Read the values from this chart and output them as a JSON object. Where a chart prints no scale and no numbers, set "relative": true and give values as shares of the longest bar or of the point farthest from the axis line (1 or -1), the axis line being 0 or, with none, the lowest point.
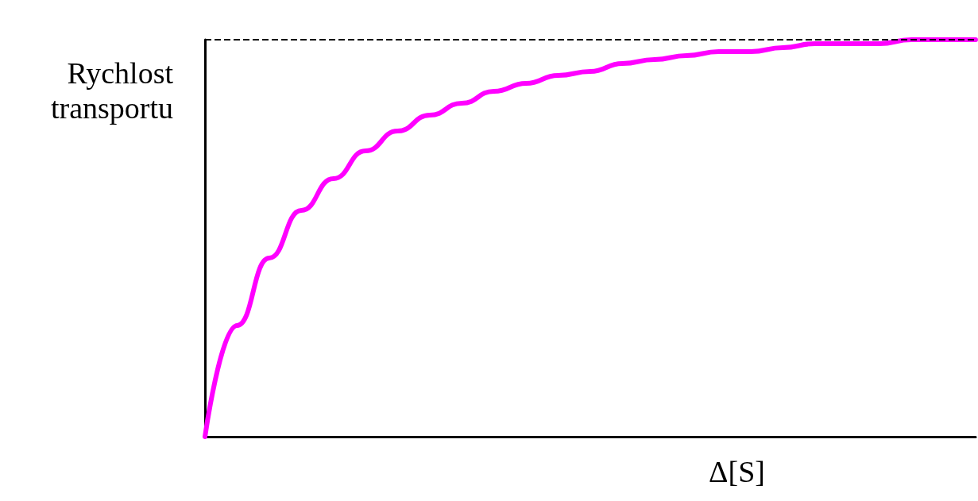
{
  "chart_data": {
    "type": "line",
    "relative": true,
    "xlabel": "Δ[S]",
    "ylabel": "Rychlost\ntransportu",
    "categories": [
      null,
      null,
      null,
      null,
      null,
      null,
      null,
      null,
      null,
      null,
      null,
      null,
      null,
      null,
      null,
      null,
      null,
      null,
      null,
      null,
      null,
      null,
      null,
      null,
      null
    ],
    "series": [
      {
        "color": "#ff00ff",
        "values": [
          0,
          0.28,
          0.45,
          0.57,
          0.65,
          0.72,
          0.77,
          0.81,
          0.84,
          0.87,
          0.89,
          0.91,
          0.92,
          0.94,
          0.95,
          0.96,
          0.97,
          0.97,
          0.98,
          0.99,
          0.99,
          0.99,
          1,
          1,
          1
        ]
      }
    ],
    "ref_lines": [
      {
        "axis": "y",
        "value": 1,
        "color": "#000000",
        "line_style": "dashed"
      }
    ],
    "grid": false,
    "marker": "none",
    "line_style": "solid"
  }
}
